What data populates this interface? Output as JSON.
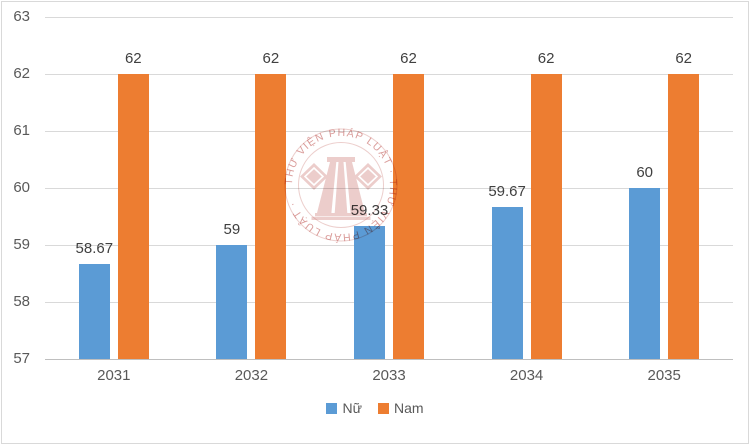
{
  "chart_data": {
    "type": "bar",
    "title": "",
    "xlabel": "",
    "ylabel": "",
    "categories": [
      "2031",
      "2032",
      "2033",
      "2034",
      "2035"
    ],
    "series": [
      {
        "name": "Nữ",
        "color": "#5B9BD5",
        "values": [
          58.67,
          59,
          59.33,
          59.67,
          60
        ],
        "labels": [
          "58.67",
          "59",
          "59.33",
          "59.67",
          "60"
        ]
      },
      {
        "name": "Nam",
        "color": "#ED7D31",
        "values": [
          62,
          62,
          62,
          62,
          62
        ],
        "labels": [
          "62",
          "62",
          "62",
          "62",
          "62"
        ]
      }
    ],
    "ylim": [
      57,
      63
    ],
    "yticks": [
      57,
      58,
      59,
      60,
      61,
      62,
      63
    ],
    "grid": true,
    "legend_position": "bottom"
  },
  "watermark": {
    "ring_text": "THƯ VIỆN PHÁP LUẬT · THƯ VIỆN PHÁP LUẬT · ",
    "color": "#C4615E"
  },
  "colors": {
    "series_nu": "#5B9BD5",
    "series_nam": "#ED7D31",
    "gridline": "#D9D9D9",
    "axis_line": "#BFBFBF",
    "axis_text": "#595959",
    "data_label_text": "#404040",
    "border": "#D9D9D9",
    "watermark_red": "#C4615E"
  }
}
